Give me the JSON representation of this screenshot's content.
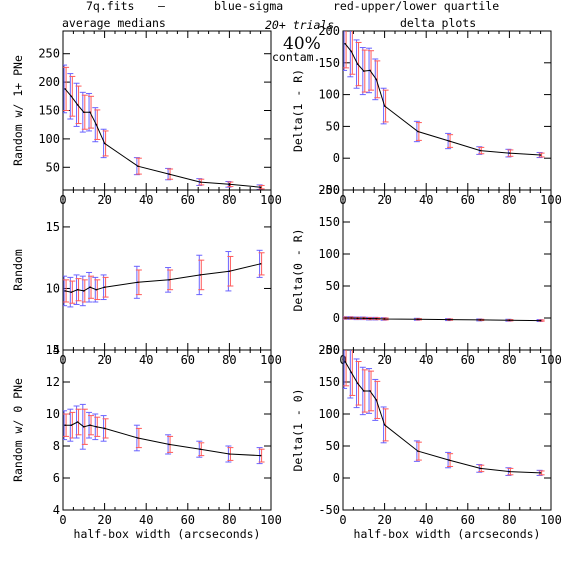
{
  "header": {
    "file": "7q.fits",
    "dash": "—",
    "blue_label": "blue-sigma",
    "red_label": "red-upper/lower quartile",
    "left_title": "average medians",
    "right_title": "delta plots",
    "trials": "20+ trials",
    "contam_pct": "40%",
    "contam": "contam."
  },
  "colors": {
    "blue": "#6a63ff",
    "red": "#ff5a5a",
    "line": "#000000"
  },
  "chart_data": [
    {
      "type": "line",
      "ylabel": "Random w/ 1+ PNe",
      "xlabel": "",
      "xlim": [
        0,
        100
      ],
      "ylim": [
        10,
        290
      ],
      "xticks": [
        0,
        20,
        40,
        60,
        80,
        100
      ],
      "yticks": [
        50,
        100,
        150,
        200,
        250
      ],
      "x": [
        1,
        4,
        7,
        10,
        13,
        16,
        20,
        36,
        51,
        66,
        80,
        95
      ],
      "y": [
        188,
        175,
        160,
        147,
        147,
        125,
        92,
        52,
        38,
        24,
        20,
        15
      ],
      "blue_err": [
        42,
        40,
        38,
        35,
        33,
        30,
        25,
        15,
        10,
        6,
        5,
        4
      ],
      "red_err": [
        38,
        35,
        33,
        30,
        28,
        26,
        22,
        14,
        9,
        5,
        4,
        3
      ]
    },
    {
      "type": "line",
      "ylabel": "Delta(1 - R)",
      "xlabel": "",
      "xlim": [
        0,
        100
      ],
      "ylim": [
        -50,
        200
      ],
      "xticks": [
        0,
        20,
        40,
        60,
        80,
        100
      ],
      "yticks": [
        -50,
        0,
        50,
        100,
        150,
        200
      ],
      "x": [
        1,
        4,
        7,
        10,
        13,
        16,
        20,
        36,
        51,
        66,
        80,
        95
      ],
      "y": [
        180,
        168,
        148,
        137,
        138,
        124,
        82,
        42,
        27,
        12,
        8,
        5
      ],
      "blue_err": [
        42,
        40,
        38,
        37,
        35,
        32,
        28,
        16,
        12,
        6,
        6,
        4
      ],
      "red_err": [
        38,
        36,
        34,
        33,
        31,
        29,
        25,
        14,
        10,
        5,
        5,
        3
      ]
    },
    {
      "type": "line",
      "ylabel": "Random",
      "xlabel": "",
      "xlim": [
        0,
        100
      ],
      "ylim": [
        5,
        18
      ],
      "xticks": [
        0,
        20,
        40,
        60,
        80,
        100
      ],
      "yticks": [
        5,
        10,
        15
      ],
      "x": [
        1,
        4,
        7,
        10,
        13,
        16,
        20,
        36,
        51,
        66,
        80,
        95
      ],
      "y": [
        9.8,
        9.7,
        9.9,
        9.8,
        10.1,
        9.9,
        10.1,
        10.5,
        10.7,
        11.1,
        11.4,
        12.0
      ],
      "blue_err": [
        1.2,
        1.2,
        1.2,
        1.2,
        1.2,
        1.0,
        1.0,
        1.3,
        1.0,
        1.6,
        1.6,
        1.1
      ],
      "red_err": [
        0.9,
        0.9,
        0.9,
        0.9,
        0.9,
        0.8,
        0.8,
        1.0,
        0.8,
        1.2,
        1.2,
        0.9
      ]
    },
    {
      "type": "line",
      "ylabel": "Delta(0 - R)",
      "xlabel": "",
      "xlim": [
        0,
        100
      ],
      "ylim": [
        -50,
        200
      ],
      "xticks": [
        0,
        20,
        40,
        60,
        80,
        100
      ],
      "yticks": [
        -50,
        0,
        50,
        100,
        150,
        200
      ],
      "x": [
        1,
        4,
        7,
        10,
        13,
        16,
        20,
        36,
        51,
        66,
        80,
        95
      ],
      "y": [
        0,
        0,
        -0.5,
        -0.5,
        -1,
        -1,
        -1.5,
        -2,
        -2.5,
        -3,
        -3.5,
        -4
      ],
      "blue_err": [
        2,
        2,
        2,
        2,
        2,
        2,
        2,
        1.5,
        1.5,
        1.5,
        1.5,
        1.5
      ],
      "red_err": [
        1.5,
        1.5,
        1.5,
        1.5,
        1.5,
        1.5,
        1.5,
        1,
        1,
        1,
        1,
        1
      ]
    },
    {
      "type": "line",
      "ylabel": "Random w/ 0 PNe",
      "xlabel": "half-box width (arcseconds)",
      "xlim": [
        0,
        100
      ],
      "ylim": [
        4,
        14
      ],
      "xticks": [
        0,
        20,
        40,
        60,
        80,
        100
      ],
      "yticks": [
        4,
        6,
        8,
        10,
        12,
        14
      ],
      "x": [
        1,
        4,
        7,
        10,
        13,
        16,
        20,
        36,
        51,
        66,
        80,
        95
      ],
      "y": [
        9.3,
        9.3,
        9.5,
        9.2,
        9.3,
        9.2,
        9.1,
        8.5,
        8.1,
        7.8,
        7.5,
        7.4
      ],
      "blue_err": [
        0.9,
        1.0,
        1.0,
        1.4,
        0.8,
        0.8,
        0.8,
        0.8,
        0.6,
        0.5,
        0.5,
        0.5
      ],
      "red_err": [
        0.7,
        0.8,
        0.8,
        1.1,
        0.6,
        0.6,
        0.6,
        0.6,
        0.5,
        0.4,
        0.4,
        0.4
      ]
    },
    {
      "type": "line",
      "ylabel": "Delta(1 - 0)",
      "xlabel": "half-box width (arcseconds)",
      "xlim": [
        0,
        100
      ],
      "ylim": [
        -50,
        200
      ],
      "xticks": [
        0,
        20,
        40,
        60,
        80,
        100
      ],
      "yticks": [
        -50,
        0,
        50,
        100,
        150,
        200
      ],
      "x": [
        1,
        4,
        7,
        10,
        13,
        16,
        20,
        36,
        51,
        66,
        80,
        95
      ],
      "y": [
        182,
        165,
        148,
        136,
        136,
        122,
        83,
        42,
        28,
        15,
        10,
        8
      ],
      "blue_err": [
        42,
        40,
        38,
        37,
        35,
        32,
        28,
        16,
        12,
        6,
        6,
        4
      ],
      "red_err": [
        38,
        36,
        34,
        33,
        31,
        29,
        25,
        14,
        10,
        5,
        5,
        3
      ]
    }
  ]
}
